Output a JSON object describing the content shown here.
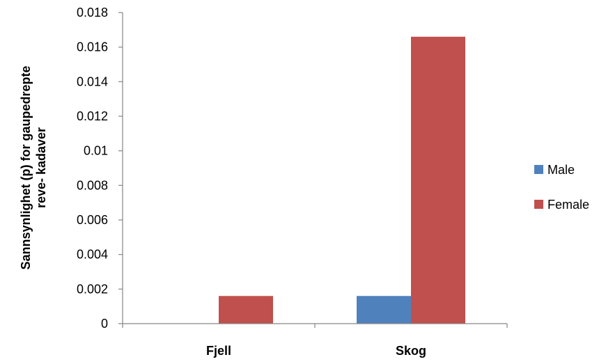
{
  "chart_data": {
    "type": "bar",
    "categories": [
      "Fjell",
      "Skog"
    ],
    "series": [
      {
        "name": "Male",
        "color": "#4f81bd",
        "values": [
          0,
          0.0016
        ]
      },
      {
        "name": "Female",
        "color": "#c0504d",
        "values": [
          0.0016,
          0.0166
        ]
      }
    ],
    "ylabel_lines": [
      "Sannsynlighet (p) for gaupedrepte",
      "reve- kadaver"
    ],
    "xlabel": "",
    "ylim": [
      0,
      0.018
    ],
    "yticks": [
      "0",
      "0.002",
      "0.004",
      "0.006",
      "0.008",
      "0.01",
      "0.012",
      "0.014",
      "0.016",
      "0.018"
    ],
    "grid": false,
    "legend_position": "right"
  }
}
